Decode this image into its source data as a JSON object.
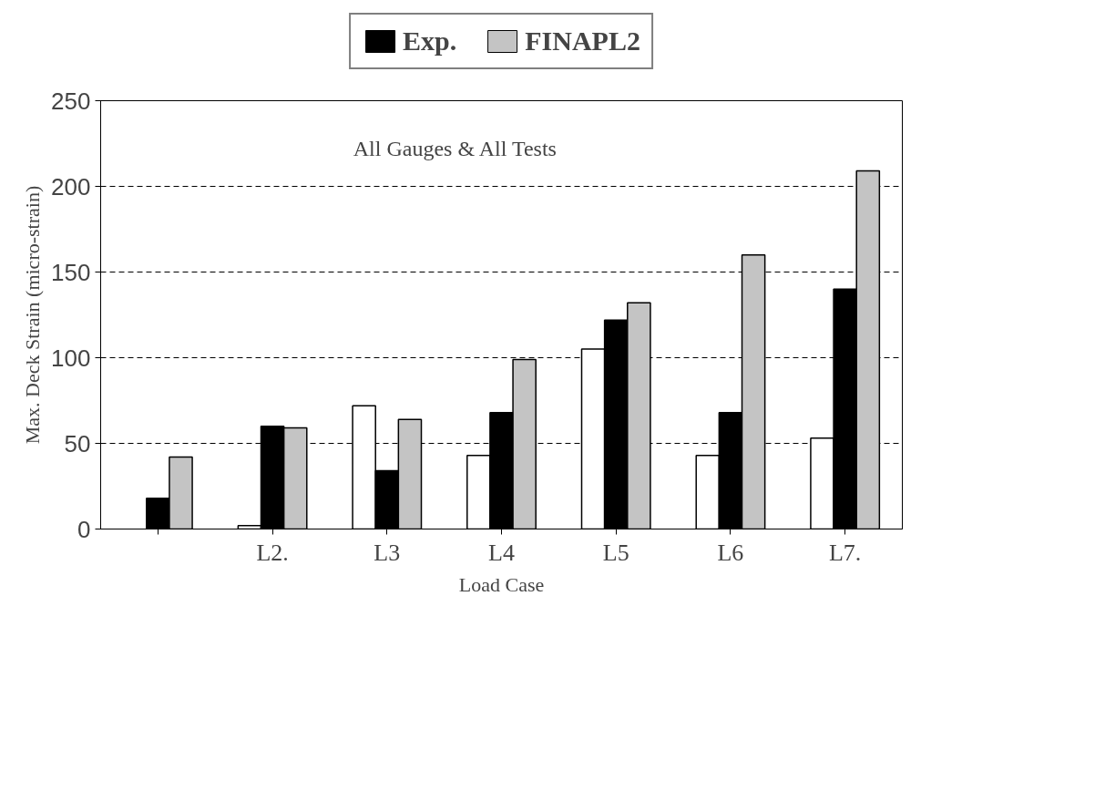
{
  "chart_data": {
    "type": "bar",
    "xlabel": "Load Case",
    "ylabel": "Max. Deck Strain (micro-strain)",
    "categories": [
      null,
      "L2.",
      "L3",
      "L4",
      "L5",
      "L6",
      "L7."
    ],
    "series": [
      {
        "color": "#ffffff",
        "values": [
          null,
          2,
          72,
          43,
          105,
          43,
          53
        ]
      },
      {
        "name": "Exp.",
        "color": "#000000",
        "values": [
          18,
          60,
          34,
          68,
          122,
          68,
          140
        ]
      },
      {
        "name": "FINAPL2",
        "color": "#c4c4c4",
        "values": [
          42,
          59,
          64,
          99,
          132,
          160,
          209
        ]
      }
    ],
    "ylim": [
      0,
      250
    ],
    "yticks": [
      0,
      50,
      100,
      150,
      200,
      250
    ],
    "grid": "y",
    "legend": "top",
    "annotations": [
      "All Gauges & All Tests"
    ]
  }
}
